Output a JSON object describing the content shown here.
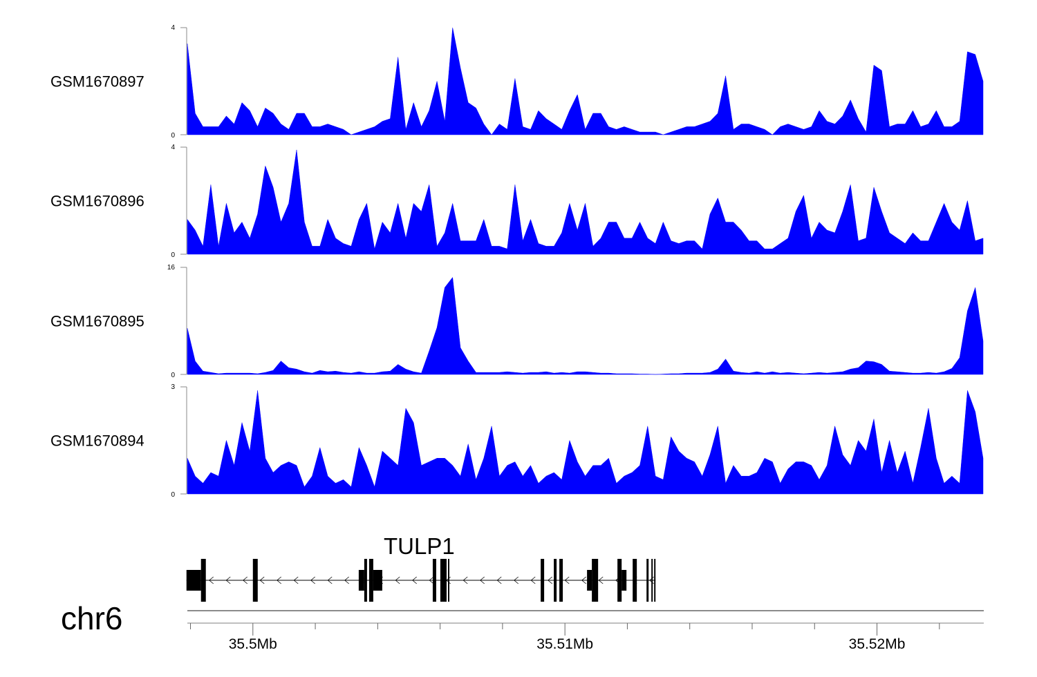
{
  "chart_data": {
    "type": "area",
    "x_unit": "bp",
    "view_range": [
      35497900,
      35523400
    ],
    "bin_start": 35497900,
    "bin_step": 250,
    "fill_color": "#0000ff",
    "tracks": [
      {
        "name": "GSM1670897",
        "ylim": [
          0,
          4
        ],
        "tick_labels": [
          "4",
          "0"
        ],
        "values": [
          3.4,
          0.8,
          0.3,
          0.3,
          0.3,
          0.7,
          0.4,
          1.2,
          0.9,
          0.3,
          1.0,
          0.8,
          0.4,
          0.2,
          0.8,
          0.8,
          0.3,
          0.3,
          0.4,
          0.3,
          0.2,
          0,
          0.1,
          0.2,
          0.3,
          0.5,
          0.6,
          2.9,
          0.2,
          1.2,
          0.3,
          0.9,
          2.0,
          0.5,
          4.0,
          2.5,
          1.2,
          1.0,
          0.4,
          0,
          0.4,
          0.2,
          2.1,
          0.3,
          0.2,
          0.9,
          0.6,
          0.4,
          0.2,
          0.9,
          1.5,
          0.2,
          0.8,
          0.8,
          0.3,
          0.2,
          0.3,
          0.2,
          0.1,
          0.1,
          0.1,
          0,
          0.1,
          0.2,
          0.3,
          0.3,
          0.4,
          0.5,
          0.8,
          2.2,
          0.2,
          0.4,
          0.4,
          0.3,
          0.2,
          0,
          0.3,
          0.4,
          0.3,
          0.2,
          0.3,
          0.9,
          0.5,
          0.4,
          0.7,
          1.3,
          0.6,
          0.1,
          2.6,
          2.4,
          0.3,
          0.4,
          0.4,
          0.9,
          0.3,
          0.4,
          0.9,
          0.3,
          0.3,
          0.5,
          3.1,
          3.0,
          2.0
        ]
      },
      {
        "name": "GSM1670896",
        "ylim": [
          0,
          4
        ],
        "tick_labels": [
          "4",
          "0"
        ],
        "values": [
          1.3,
          0.9,
          0.3,
          2.6,
          0.3,
          1.9,
          0.8,
          1.2,
          0.6,
          1.5,
          3.3,
          2.5,
          1.2,
          1.9,
          3.9,
          1.2,
          0.3,
          0.3,
          1.3,
          0.6,
          0.4,
          0.3,
          1.3,
          1.9,
          0.2,
          1.2,
          0.8,
          1.9,
          0.6,
          1.9,
          1.6,
          2.6,
          0.3,
          0.8,
          1.9,
          0.5,
          0.5,
          0.5,
          1.3,
          0.3,
          0.3,
          0.2,
          2.6,
          0.5,
          1.3,
          0.4,
          0.3,
          0.3,
          0.8,
          1.9,
          0.9,
          1.9,
          0.3,
          0.6,
          1.2,
          1.2,
          0.6,
          0.6,
          1.2,
          0.6,
          0.4,
          1.2,
          0.5,
          0.4,
          0.5,
          0.5,
          0.2,
          1.5,
          2.1,
          1.2,
          1.2,
          0.9,
          0.5,
          0.5,
          0.2,
          0.2,
          0.4,
          0.6,
          1.6,
          2.2,
          0.6,
          1.2,
          0.9,
          0.8,
          1.6,
          2.6,
          0.5,
          0.6,
          2.5,
          1.6,
          0.8,
          0.6,
          0.4,
          0.8,
          0.5,
          0.5,
          1.2,
          1.9,
          1.2,
          0.9,
          2.0,
          0.5,
          0.6
        ]
      },
      {
        "name": "GSM1670895",
        "ylim": [
          0,
          16
        ],
        "tick_labels": [
          "16",
          "0"
        ],
        "values": [
          6.9,
          2.0,
          0.5,
          0.3,
          0.1,
          0.2,
          0.2,
          0.2,
          0.2,
          0.1,
          0.3,
          0.6,
          2.0,
          1.0,
          0.8,
          0.4,
          0.2,
          0.6,
          0.4,
          0.5,
          0.3,
          0.2,
          0.4,
          0.2,
          0.2,
          0.4,
          0.5,
          1.5,
          0.8,
          0.4,
          0.2,
          3.5,
          7.0,
          13.0,
          14.5,
          4.0,
          2.0,
          0.3,
          0.3,
          0.3,
          0.3,
          0.4,
          0.3,
          0.2,
          0.3,
          0.3,
          0.4,
          0.2,
          0.3,
          0.2,
          0.4,
          0.4,
          0.3,
          0.2,
          0.2,
          0.1,
          0.1,
          0.1,
          0.05,
          0.05,
          0,
          0.05,
          0.1,
          0.1,
          0.2,
          0.2,
          0.2,
          0.3,
          0.8,
          2.3,
          0.5,
          0.3,
          0.2,
          0.4,
          0.2,
          0.4,
          0.2,
          0.3,
          0.2,
          0.1,
          0.2,
          0.3,
          0.2,
          0.3,
          0.4,
          0.8,
          1.0,
          2.0,
          1.9,
          1.5,
          0.5,
          0.4,
          0.3,
          0.2,
          0.2,
          0.3,
          0.2,
          0.4,
          0.9,
          2.5,
          9.5,
          13.0,
          5.0
        ]
      },
      {
        "name": "GSM1670894",
        "ylim": [
          0,
          3
        ],
        "tick_labels": [
          "3",
          "0"
        ],
        "values": [
          1.0,
          0.5,
          0.3,
          0.6,
          0.5,
          1.5,
          0.8,
          2.0,
          1.2,
          2.9,
          1.0,
          0.6,
          0.8,
          0.9,
          0.8,
          0.2,
          0.5,
          1.3,
          0.5,
          0.3,
          0.4,
          0.2,
          1.3,
          0.8,
          0.2,
          1.2,
          1.0,
          0.8,
          2.4,
          2.0,
          0.8,
          0.9,
          1.0,
          1.0,
          0.8,
          0.5,
          1.4,
          0.4,
          1.0,
          1.9,
          0.5,
          0.8,
          0.9,
          0.5,
          0.8,
          0.3,
          0.5,
          0.6,
          0.4,
          1.5,
          0.9,
          0.5,
          0.8,
          0.8,
          1.0,
          0.3,
          0.5,
          0.6,
          0.8,
          1.9,
          0.5,
          0.4,
          1.6,
          1.2,
          1.0,
          0.9,
          0.5,
          1.1,
          1.9,
          0.3,
          0.8,
          0.5,
          0.5,
          0.6,
          1.0,
          0.9,
          0.3,
          0.7,
          0.9,
          0.9,
          0.8,
          0.4,
          0.8,
          1.9,
          1.1,
          0.8,
          1.5,
          1.2,
          2.1,
          0.6,
          1.5,
          0.6,
          1.2,
          0.3,
          1.3,
          2.4,
          1.0,
          0.3,
          0.5,
          0.3,
          2.9,
          2.3,
          1.0
        ]
      }
    ],
    "gene": {
      "name": "TULP1",
      "strand": "-",
      "range": [
        35497872,
        35512903
      ],
      "exons": [
        [
          35497872,
          35498337,
          "utr"
        ],
        [
          35498337,
          35498492,
          "cds"
        ],
        [
          35500000,
          35500155,
          "cds"
        ],
        [
          35503392,
          35503569,
          "utr"
        ],
        [
          35503569,
          35503658,
          "cds"
        ],
        [
          35503725,
          35503858,
          "cds"
        ],
        [
          35503858,
          35504146,
          "utr"
        ],
        [
          35505764,
          35505875,
          "cds"
        ],
        [
          35506008,
          35506208,
          "cds"
        ],
        [
          35506252,
          35506296,
          "cds"
        ],
        [
          35509223,
          35509334,
          "cds"
        ],
        [
          35509644,
          35509733,
          "cds"
        ],
        [
          35509821,
          35509932,
          "cds"
        ],
        [
          35510708,
          35510863,
          "utr"
        ],
        [
          35510863,
          35511063,
          "cds"
        ],
        [
          35511683,
          35511817,
          "cds"
        ],
        [
          35511817,
          35511972,
          "utr"
        ],
        [
          35512171,
          35512304,
          "cds"
        ],
        [
          35512615,
          35512681,
          "cds"
        ],
        [
          35512770,
          35512814,
          "cds"
        ],
        [
          35512859,
          35512903,
          "cds"
        ]
      ]
    },
    "x_axis": {
      "chromosome": "chr6",
      "minor_ticks": [
        35498000,
        35502000,
        35504000,
        35506000,
        35508000,
        35512000,
        35514000,
        35516000,
        35518000,
        35522000
      ],
      "major_ticks": [
        {
          "pos": 35500000,
          "label": "35.5Mb"
        },
        {
          "pos": 35510000,
          "label": "35.51Mb"
        },
        {
          "pos": 35520000,
          "label": "35.52Mb"
        }
      ]
    }
  }
}
